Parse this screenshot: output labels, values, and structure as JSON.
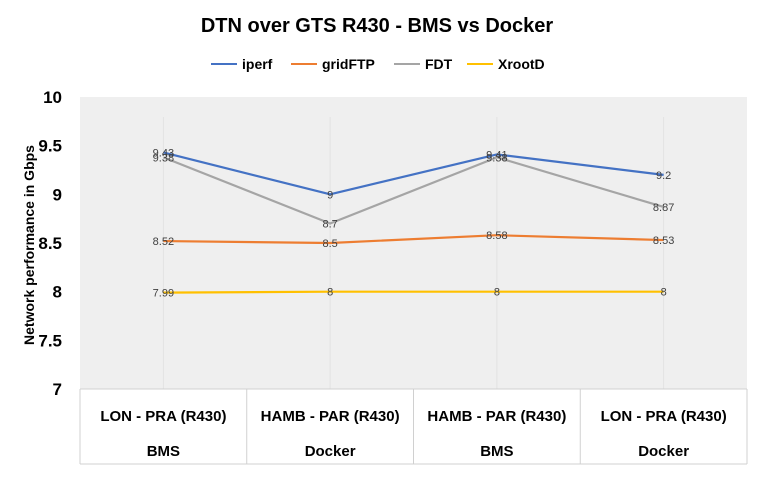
{
  "chart_data": {
    "type": "line",
    "title": "DTN over GTS R430 - BMS vs Docker",
    "ylabel": "Network performance in Gbps",
    "xlabel": "",
    "ylim": [
      7,
      10
    ],
    "yticks": [
      "7",
      "7.5",
      "8",
      "8.5",
      "9",
      "9.5",
      "10"
    ],
    "categories": [
      {
        "route": "LON - PRA (R430)",
        "env": "BMS"
      },
      {
        "route": "HAMB - PAR (R430)",
        "env": "Docker"
      },
      {
        "route": "HAMB - PAR (R430)",
        "env": "BMS"
      },
      {
        "route": "LON - PRA (R430)",
        "env": "Docker"
      }
    ],
    "series": [
      {
        "name": "iperf",
        "color": "#4472C4",
        "values": [
          9.43,
          9.0,
          9.41,
          9.2
        ],
        "labels": [
          "9.43",
          "9",
          "9.41",
          "9.2"
        ]
      },
      {
        "name": "gridFTP",
        "color": "#ED7D31",
        "values": [
          8.52,
          8.5,
          8.58,
          8.53
        ],
        "labels": [
          "8.52",
          "8.5",
          "8.58",
          "8.53"
        ]
      },
      {
        "name": "FDT",
        "color": "#A5A5A5",
        "values": [
          9.38,
          8.7,
          9.38,
          8.87
        ],
        "labels": [
          "9.38",
          "8.7",
          "9.38",
          "8.87"
        ]
      },
      {
        "name": "XrootD",
        "color": "#FFC000",
        "values": [
          7.99,
          8.0,
          8.0,
          8.0
        ],
        "labels": [
          "7.99",
          "8",
          "8",
          "8"
        ]
      }
    ],
    "grid": false,
    "legend": "top"
  }
}
